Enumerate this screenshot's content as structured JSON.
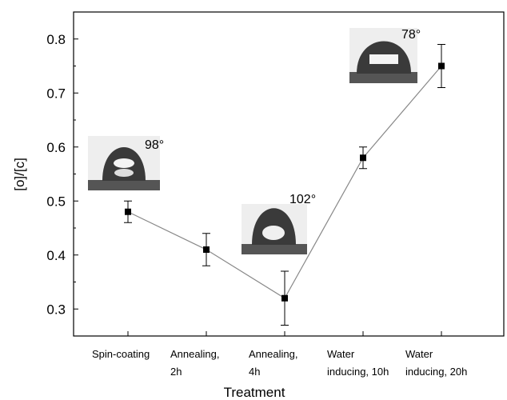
{
  "chart_data": {
    "type": "line",
    "x_label": "Treatment",
    "y_label": "[o]/[c]",
    "categories": [
      "Spin-coating",
      "Annealing,\n2h",
      "Annealing,\n4h",
      "Water\ninducing, 10h",
      "Water\ninducing, 20h"
    ],
    "values": [
      0.48,
      0.41,
      0.32,
      0.58,
      0.75
    ],
    "errors": [
      0.02,
      0.03,
      0.05,
      0.02,
      0.04
    ],
    "color": "#888888",
    "marker_color": "#000000",
    "ylim": [
      0.25,
      0.85
    ],
    "yticks": [
      0.3,
      0.4,
      0.5,
      0.6,
      0.7,
      0.8
    ],
    "annotations": [
      "98°",
      "102°",
      "78°"
    ]
  }
}
